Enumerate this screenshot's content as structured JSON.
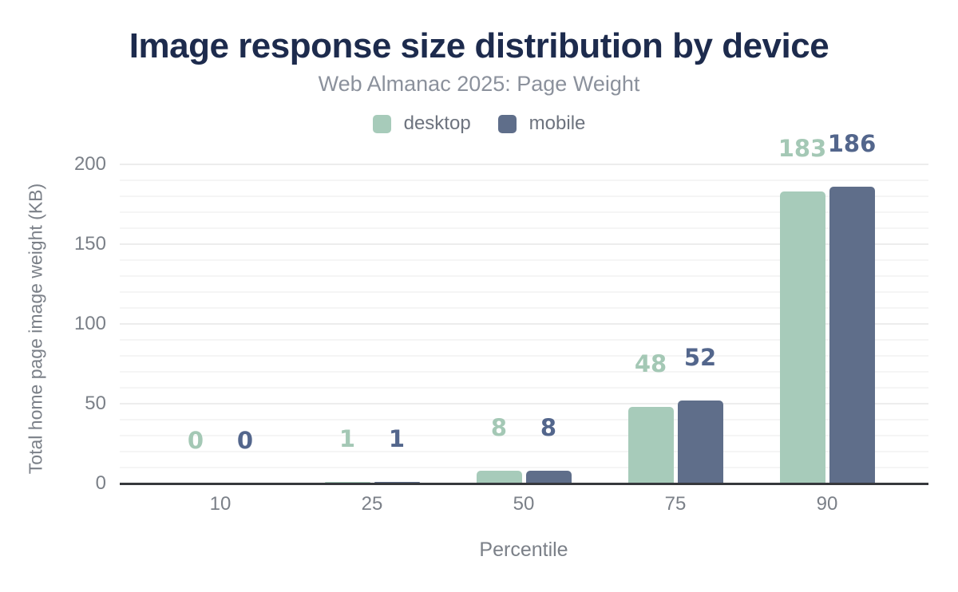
{
  "chart_data": {
    "type": "bar",
    "title": "Image response size distribution by device",
    "subtitle": "Web Almanac 2025: Page Weight",
    "xlabel": "Percentile",
    "ylabel": "Total home page image weight (KB)",
    "categories": [
      "10",
      "25",
      "50",
      "75",
      "90"
    ],
    "series": [
      {
        "name": "desktop",
        "values": [
          0,
          1,
          8,
          48,
          183
        ],
        "color": "#a7cbba",
        "label_color": "#a4c8b5"
      },
      {
        "name": "mobile",
        "values": [
          0,
          1,
          8,
          52,
          186
        ],
        "color": "#5f6e8a",
        "label_color": "#53668c"
      }
    ],
    "yticks": [
      0,
      50,
      100,
      150,
      200
    ],
    "ylim": [
      0,
      200
    ],
    "grid": true,
    "grid_interval_kb": 10,
    "legend_position": "top",
    "data_labels": true
  },
  "colors": {
    "title": "#1d2b4d",
    "subtitle": "#8b919c",
    "axis_text": "#7b8088",
    "legend_text": "#6d737e",
    "axis_line": "#36383c",
    "gridline_minor": "#f5f5f5",
    "gridline_major": "#ededed",
    "background": "#ffffff"
  }
}
